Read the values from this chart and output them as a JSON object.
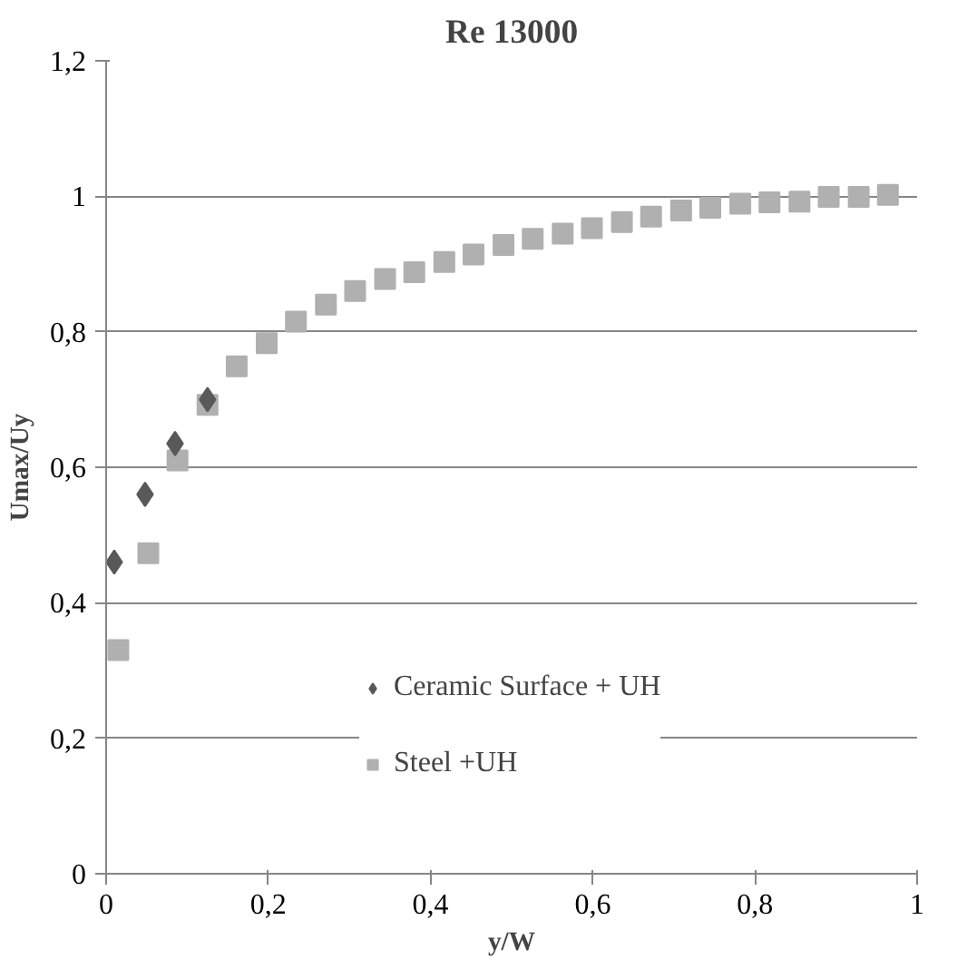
{
  "chart_data": {
    "type": "scatter",
    "title": "Re 13000",
    "xlabel": "y/W",
    "ylabel": "Umax/Uy",
    "xlim": [
      0,
      1
    ],
    "ylim": [
      0,
      1.2
    ],
    "xticks": [
      0,
      {
        "value": 0.2,
        "label": "0,2"
      },
      {
        "value": 0.4,
        "label": "0,4"
      },
      {
        "value": 0.6,
        "label": "0,6"
      },
      {
        "value": 0.8,
        "label": "0,8"
      },
      1
    ],
    "yticks": [
      0,
      {
        "value": 0.2,
        "label": "0,2"
      },
      {
        "value": 0.4,
        "label": "0,4"
      },
      {
        "value": 0.6,
        "label": "0,6"
      },
      {
        "value": 0.8,
        "label": "0,8"
      },
      1,
      {
        "value": 1.2,
        "label": "1,2"
      }
    ],
    "grid": "y",
    "legend": "right",
    "series": [
      {
        "name": "Ceramic Surface + UH",
        "color": "#595959",
        "marker": "diamond",
        "x": [
          0.01,
          0.048,
          0.085,
          0.125
        ],
        "values": [
          0.46,
          0.56,
          0.635,
          0.7
        ]
      },
      {
        "name": "Steel +UH",
        "color": "#b0b0b0",
        "marker": "square",
        "x": [
          0.015,
          0.052,
          0.088,
          0.125,
          0.161,
          0.198,
          0.234,
          0.271,
          0.307,
          0.344,
          0.38,
          0.417,
          0.453,
          0.49,
          0.526,
          0.563,
          0.599,
          0.636,
          0.672,
          0.709,
          0.745,
          0.782,
          0.818,
          0.855,
          0.891,
          0.928,
          0.964
        ],
        "values": [
          0.33,
          0.473,
          0.61,
          0.692,
          0.749,
          0.783,
          0.815,
          0.84,
          0.86,
          0.878,
          0.888,
          0.903,
          0.914,
          0.928,
          0.937,
          0.945,
          0.953,
          0.962,
          0.97,
          0.979,
          0.983,
          0.989,
          0.991,
          0.992,
          0.999,
          0.999,
          1.002
        ]
      }
    ]
  }
}
